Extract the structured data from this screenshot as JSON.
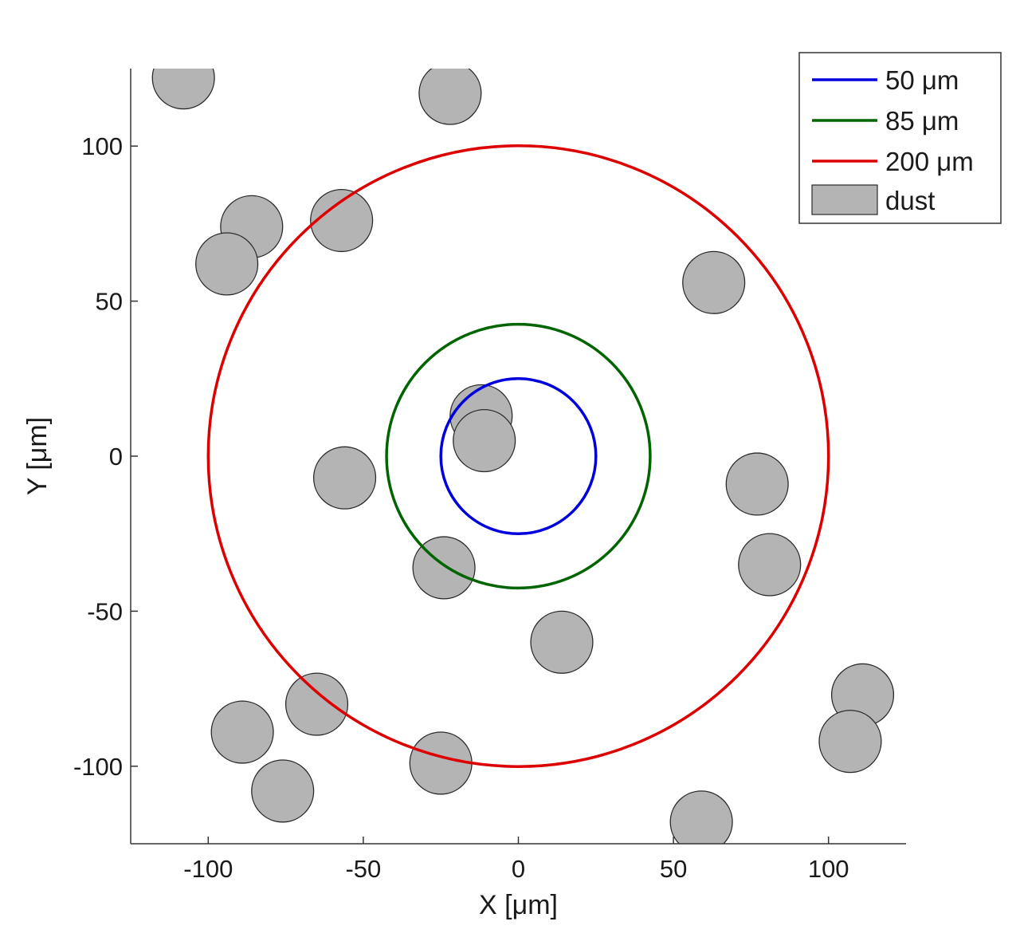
{
  "chart_data": {
    "type": "scatter",
    "title": "",
    "xlabel": "X [μm]",
    "ylabel": "Y [μm]",
    "xlim": [
      -125,
      125
    ],
    "ylim": [
      -125,
      125
    ],
    "xticks": [
      -100,
      -50,
      0,
      50,
      100
    ],
    "yticks": [
      -100,
      -50,
      0,
      50,
      100
    ],
    "xtick_labels": [
      "-100",
      "-50",
      "0",
      "50",
      "100"
    ],
    "ytick_labels": [
      "-100",
      "-50",
      "0",
      "50",
      "100"
    ],
    "grid": false,
    "legend_position": "top-right",
    "circles": [
      {
        "name": "50 μm",
        "diameter": 50,
        "radius": 25,
        "color": "#0000dd"
      },
      {
        "name": "85 μm",
        "diameter": 85,
        "radius": 42.5,
        "color": "#006400"
      },
      {
        "name": "200 μm",
        "diameter": 200,
        "radius": 100,
        "color": "#dd0000"
      }
    ],
    "dust": {
      "name": "dust",
      "fill": "#b4b4b4",
      "edge": "#2a2a2a",
      "radius": 10,
      "centers": [
        [
          -108,
          122
        ],
        [
          -22,
          117
        ],
        [
          -86,
          74
        ],
        [
          -94,
          62
        ],
        [
          -57,
          76
        ],
        [
          63,
          56
        ],
        [
          -12,
          13
        ],
        [
          -11,
          5
        ],
        [
          -56,
          -7
        ],
        [
          77,
          -9
        ],
        [
          81,
          -35
        ],
        [
          -24,
          -36
        ],
        [
          14,
          -60
        ],
        [
          -65,
          -80
        ],
        [
          -89,
          -89
        ],
        [
          -76,
          -108
        ],
        [
          -25,
          -99
        ],
        [
          111,
          -77
        ],
        [
          107,
          -92
        ],
        [
          59,
          -118
        ]
      ]
    }
  }
}
